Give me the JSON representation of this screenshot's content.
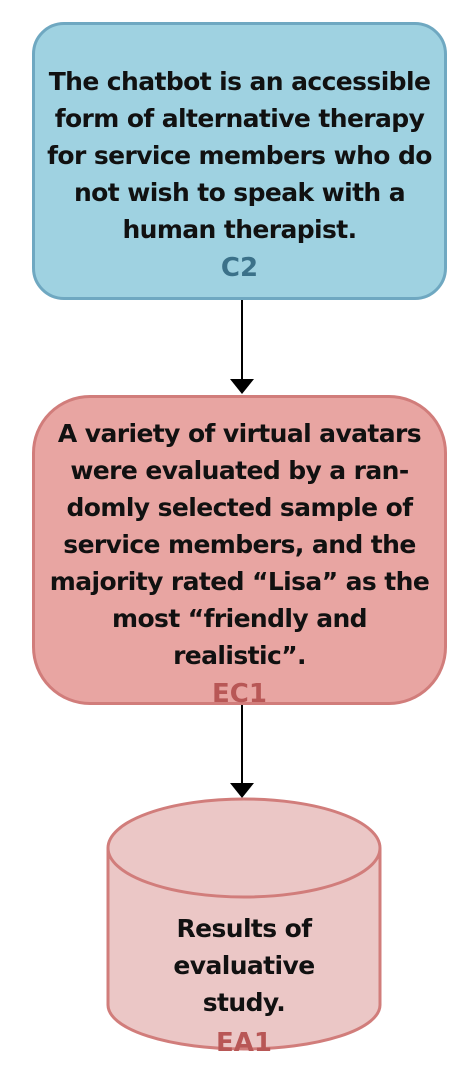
{
  "nodes": {
    "claim": {
      "text": "The chatbot is an accessible form of alternative therapy for service members who do not wish to speak with a human therapist.",
      "tag": "C2"
    },
    "evidence": {
      "text": "A variety of virtual avatars were evaluated by a ran-domly selected sample of service members, and the majority rated “Lisa” as the most “friendly and realistic”.",
      "tag": "EC1"
    },
    "artefact": {
      "text": "Results of evaluative study.",
      "tag": "EA1"
    }
  },
  "colors": {
    "claim_fill": "#9fd2e1",
    "claim_border": "#6fa8c1",
    "evidence_fill": "#e8a5a2",
    "evidence_border": "#d17d7b",
    "artefact_fill": "#ebc7c6",
    "artefact_border": "#d17d7b",
    "edge": "#000000"
  }
}
